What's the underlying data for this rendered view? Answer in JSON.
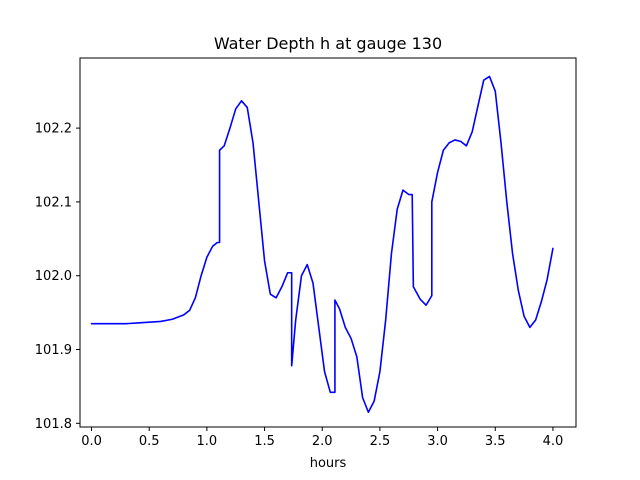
{
  "chart_data": {
    "type": "line",
    "title": "Water Depth h at gauge 130",
    "xlabel": "hours",
    "ylabel": "",
    "xlim": [
      -0.1,
      4.2
    ],
    "ylim": [
      101.795,
      102.295
    ],
    "xticks": [
      0.0,
      0.5,
      1.0,
      1.5,
      2.0,
      2.5,
      3.0,
      3.5,
      4.0
    ],
    "xtick_labels": [
      "0.0",
      "0.5",
      "1.0",
      "1.5",
      "2.0",
      "2.5",
      "3.0",
      "3.5",
      "4.0"
    ],
    "yticks": [
      101.8,
      101.9,
      102.0,
      102.1,
      102.2
    ],
    "ytick_labels": [
      "101.8",
      "101.9",
      "102.0",
      "102.1",
      "102.2"
    ],
    "grid": false,
    "series": [
      {
        "color": "#0000ff",
        "x": [
          0.0,
          0.1,
          0.2,
          0.3,
          0.4,
          0.5,
          0.6,
          0.7,
          0.8,
          0.85,
          0.9,
          0.95,
          1.0,
          1.05,
          1.09,
          1.11,
          1.11,
          1.15,
          1.2,
          1.25,
          1.3,
          1.35,
          1.4,
          1.45,
          1.5,
          1.55,
          1.6,
          1.65,
          1.7,
          1.735,
          1.735,
          1.77,
          1.82,
          1.87,
          1.92,
          1.97,
          2.02,
          2.07,
          2.11,
          2.11,
          2.15,
          2.2,
          2.25,
          2.3,
          2.35,
          2.4,
          2.45,
          2.5,
          2.55,
          2.6,
          2.65,
          2.7,
          2.75,
          2.78,
          2.79,
          2.79,
          2.85,
          2.9,
          2.95,
          2.95,
          3.0,
          3.05,
          3.1,
          3.15,
          3.2,
          3.25,
          3.3,
          3.35,
          3.4,
          3.45,
          3.5,
          3.55,
          3.6,
          3.65,
          3.7,
          3.75,
          3.8,
          3.85,
          3.9,
          3.95,
          4.0
        ],
        "y": [
          101.935,
          101.935,
          101.935,
          101.935,
          101.936,
          101.937,
          101.938,
          101.941,
          101.947,
          101.953,
          101.97,
          102.0,
          102.025,
          102.04,
          102.045,
          102.045,
          102.17,
          102.176,
          102.2,
          102.226,
          102.237,
          102.228,
          102.18,
          102.1,
          102.02,
          101.975,
          101.97,
          101.985,
          102.004,
          102.004,
          101.878,
          101.94,
          102.0,
          102.015,
          101.99,
          101.93,
          101.87,
          101.842,
          101.842,
          101.967,
          101.955,
          101.93,
          101.915,
          101.89,
          101.835,
          101.815,
          101.83,
          101.87,
          101.94,
          102.03,
          102.09,
          102.116,
          102.11,
          102.11,
          101.985,
          101.985,
          101.968,
          101.96,
          101.973,
          102.1,
          102.14,
          102.17,
          102.18,
          102.184,
          102.182,
          102.176,
          102.195,
          102.23,
          102.265,
          102.27,
          102.25,
          102.18,
          102.1,
          102.03,
          101.98,
          101.945,
          101.93,
          101.94,
          101.965,
          101.995,
          102.037
        ]
      }
    ]
  }
}
